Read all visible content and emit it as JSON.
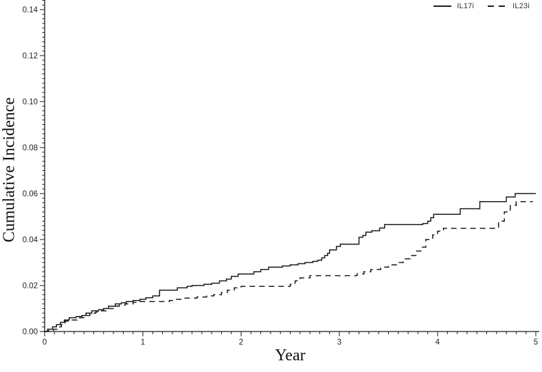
{
  "chart_data": {
    "type": "line",
    "subtype": "step",
    "title": "",
    "xlabel": "Year",
    "ylabel": "Cumulative Incidence",
    "xlim": [
      0,
      5
    ],
    "ylim": [
      0,
      0.14
    ],
    "grid": false,
    "legend_position": "top-right",
    "line_color": "#1a1a1a",
    "x_ticks": {
      "major_values": [
        0,
        1,
        2,
        3,
        4,
        5
      ],
      "major_labels": [
        "0",
        "1",
        "2",
        "3",
        "4",
        "5"
      ],
      "minor_step": 0.1
    },
    "y_ticks": {
      "major_values": [
        0.0,
        0.02,
        0.04,
        0.06,
        0.08,
        0.1,
        0.12,
        0.14
      ],
      "major_labels": [
        "0.00",
        "0.02",
        "0.04",
        "0.06",
        "0.08",
        "0.10",
        "0.12",
        "0.14"
      ],
      "minor_step": 0.002
    },
    "series": [
      {
        "name": "IL17i",
        "style": "solid",
        "color": "#1a1a1a",
        "points": [
          [
            0,
            0
          ],
          [
            0.03,
            0.001
          ],
          [
            0.08,
            0.002
          ],
          [
            0.12,
            0.003
          ],
          [
            0.16,
            0.004
          ],
          [
            0.2,
            0.005
          ],
          [
            0.25,
            0.006
          ],
          [
            0.32,
            0.0065
          ],
          [
            0.38,
            0.007
          ],
          [
            0.42,
            0.008
          ],
          [
            0.48,
            0.009
          ],
          [
            0.55,
            0.0095
          ],
          [
            0.6,
            0.01
          ],
          [
            0.65,
            0.011
          ],
          [
            0.72,
            0.012
          ],
          [
            0.78,
            0.0125
          ],
          [
            0.83,
            0.013
          ],
          [
            0.9,
            0.0135
          ],
          [
            0.97,
            0.014
          ],
          [
            1.03,
            0.0147
          ],
          [
            1.1,
            0.0155
          ],
          [
            1.17,
            0.018
          ],
          [
            1.35,
            0.019
          ],
          [
            1.45,
            0.0196
          ],
          [
            1.5,
            0.02
          ],
          [
            1.62,
            0.0205
          ],
          [
            1.7,
            0.021
          ],
          [
            1.78,
            0.022
          ],
          [
            1.85,
            0.0228
          ],
          [
            1.9,
            0.024
          ],
          [
            1.97,
            0.025
          ],
          [
            2.13,
            0.026
          ],
          [
            2.2,
            0.027
          ],
          [
            2.28,
            0.028
          ],
          [
            2.42,
            0.0285
          ],
          [
            2.5,
            0.029
          ],
          [
            2.58,
            0.0295
          ],
          [
            2.65,
            0.03
          ],
          [
            2.73,
            0.0305
          ],
          [
            2.78,
            0.031
          ],
          [
            2.82,
            0.032
          ],
          [
            2.85,
            0.033
          ],
          [
            2.88,
            0.034
          ],
          [
            2.9,
            0.0355
          ],
          [
            2.97,
            0.037
          ],
          [
            3.01,
            0.038
          ],
          [
            3.2,
            0.041
          ],
          [
            3.24,
            0.0418
          ],
          [
            3.27,
            0.0432
          ],
          [
            3.33,
            0.0438
          ],
          [
            3.41,
            0.045
          ],
          [
            3.46,
            0.0465
          ],
          [
            3.85,
            0.047
          ],
          [
            3.9,
            0.048
          ],
          [
            3.93,
            0.0495
          ],
          [
            3.96,
            0.051
          ],
          [
            4.23,
            0.0534
          ],
          [
            4.43,
            0.0565
          ],
          [
            4.7,
            0.0585
          ],
          [
            4.79,
            0.06
          ],
          [
            5,
            0.06
          ]
        ]
      },
      {
        "name": "IL23i",
        "style": "dashed",
        "color": "#1a1a1a",
        "points": [
          [
            0,
            0
          ],
          [
            0.04,
            0.0005
          ],
          [
            0.09,
            0.001
          ],
          [
            0.13,
            0.002
          ],
          [
            0.17,
            0.003
          ],
          [
            0.21,
            0.0045
          ],
          [
            0.27,
            0.005
          ],
          [
            0.33,
            0.006
          ],
          [
            0.4,
            0.007
          ],
          [
            0.46,
            0.008
          ],
          [
            0.52,
            0.0085
          ],
          [
            0.58,
            0.009
          ],
          [
            0.64,
            0.01
          ],
          [
            0.7,
            0.011
          ],
          [
            0.76,
            0.0115
          ],
          [
            0.82,
            0.012
          ],
          [
            0.9,
            0.0127
          ],
          [
            0.97,
            0.013
          ],
          [
            1.27,
            0.0135
          ],
          [
            1.33,
            0.014
          ],
          [
            1.42,
            0.0145
          ],
          [
            1.55,
            0.015
          ],
          [
            1.65,
            0.0155
          ],
          [
            1.72,
            0.016
          ],
          [
            1.8,
            0.017
          ],
          [
            1.86,
            0.018
          ],
          [
            1.93,
            0.019
          ],
          [
            2,
            0.0196
          ],
          [
            2.5,
            0.0205
          ],
          [
            2.55,
            0.022
          ],
          [
            2.6,
            0.0233
          ],
          [
            2.7,
            0.0243
          ],
          [
            3.18,
            0.025
          ],
          [
            3.25,
            0.026
          ],
          [
            3.32,
            0.027
          ],
          [
            3.42,
            0.028
          ],
          [
            3.5,
            0.029
          ],
          [
            3.58,
            0.03
          ],
          [
            3.65,
            0.0316
          ],
          [
            3.72,
            0.033
          ],
          [
            3.78,
            0.035
          ],
          [
            3.83,
            0.0367
          ],
          [
            3.88,
            0.04
          ],
          [
            3.95,
            0.042
          ],
          [
            4.0,
            0.0436
          ],
          [
            4.06,
            0.0449
          ],
          [
            4.62,
            0.048
          ],
          [
            4.68,
            0.052
          ],
          [
            4.74,
            0.0548
          ],
          [
            4.8,
            0.0565
          ],
          [
            4.97,
            0.0565
          ]
        ]
      }
    ]
  }
}
